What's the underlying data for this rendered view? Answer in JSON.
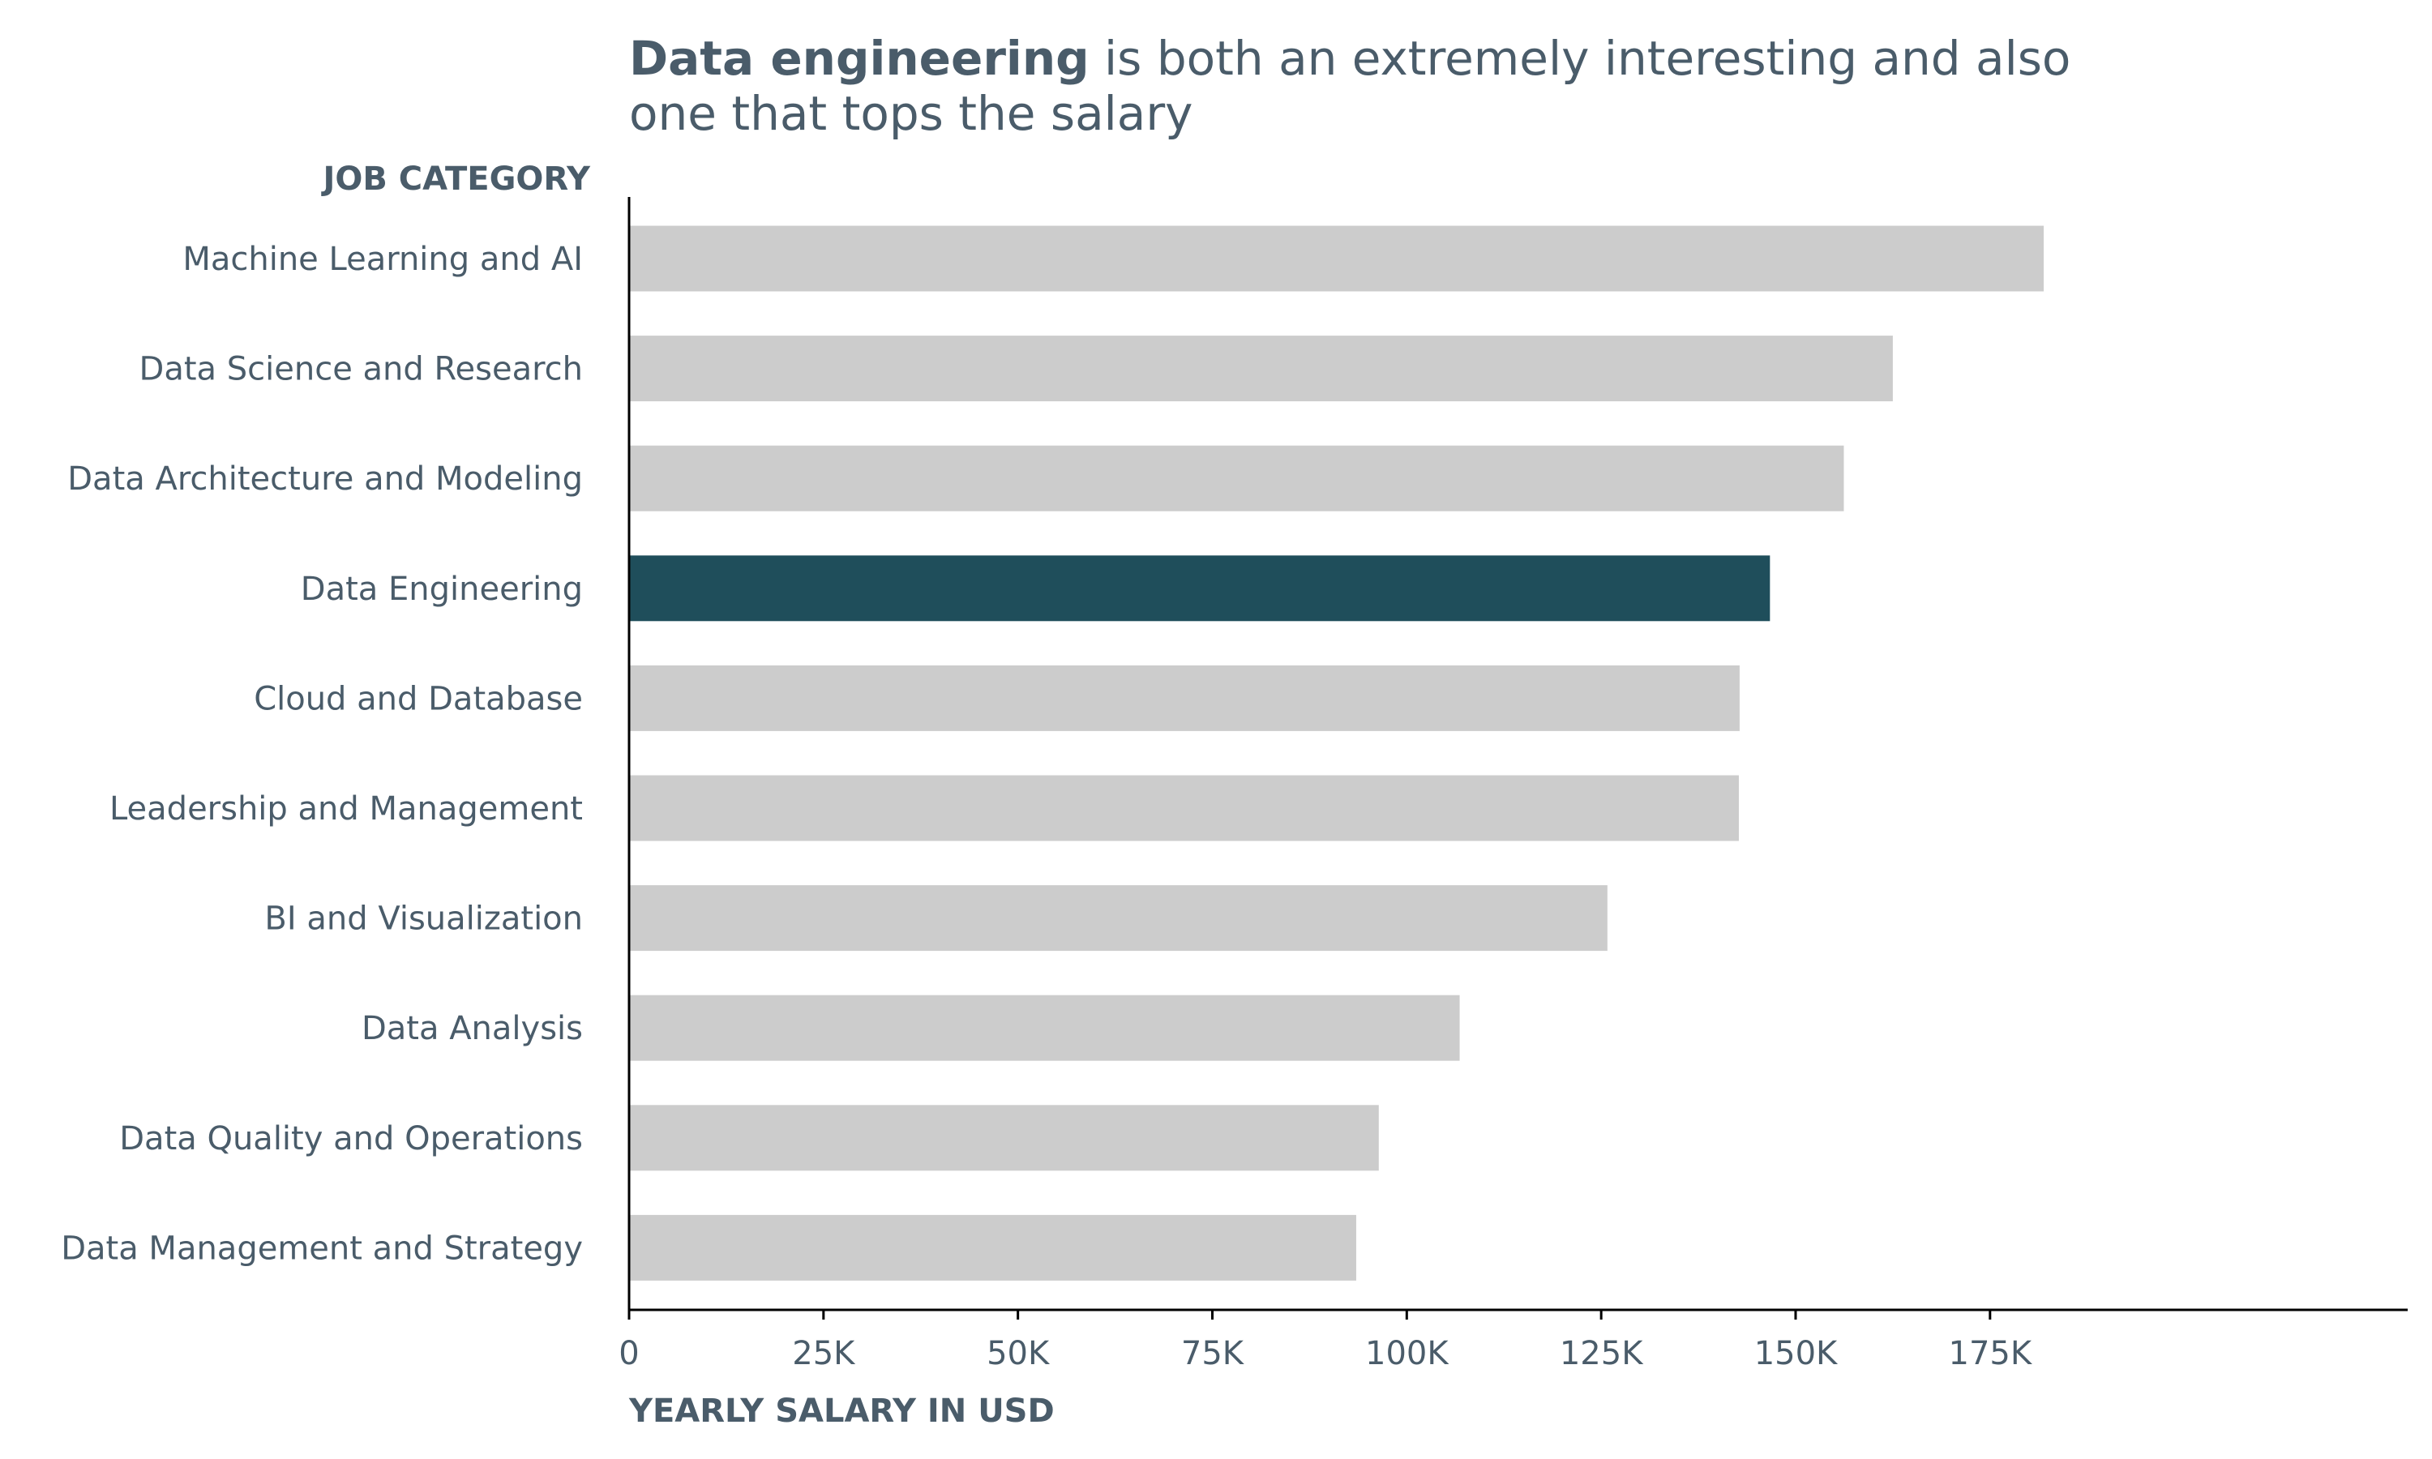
{
  "title": {
    "bold": "Data engineering",
    "rest_line1": " is both an extremely interesting and also",
    "line2": "one that tops the salary"
  },
  "chart_data": {
    "type": "bar",
    "orientation": "horizontal",
    "ylabel": "JOB CATEGORY",
    "xlabel": "YEARLY SALARY IN USD",
    "xlim": [
      0,
      190000
    ],
    "xticks": [
      0,
      25000,
      50000,
      75000,
      100000,
      125000,
      150000,
      175000
    ],
    "xtick_labels": [
      "0",
      "25K",
      "50K",
      "75K",
      "100K",
      "125K",
      "150K",
      "175K"
    ],
    "grid": false,
    "legend": "none",
    "categories": [
      "Machine Learning and AI",
      "Data Science and Research",
      "Data Architecture and Modeling",
      "Data Engineering",
      "Cloud and Database",
      "Leadership and Management",
      "BI and Visualization",
      "Data Analysis",
      "Data Quality and Operations",
      "Data Management and Strategy"
    ],
    "values": [
      181900,
      162500,
      156200,
      146700,
      142800,
      142700,
      125800,
      106800,
      96400,
      93500
    ],
    "highlight": "Data Engineering",
    "colors": {
      "bar": "#cccccc",
      "highlight": "#1f4e5b",
      "text": "#4a5c6a",
      "axis": "#000000"
    }
  }
}
